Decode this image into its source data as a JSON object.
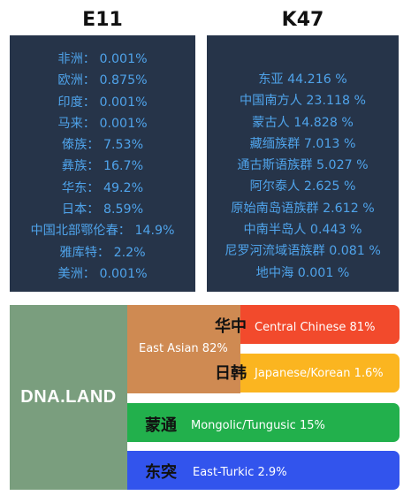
{
  "e11": {
    "title": "E11",
    "items": [
      "非洲： 0.001%",
      "欧洲： 0.875%",
      "印度： 0.001%",
      "马来： 0.001%",
      "傣族： 7.53%",
      "彝族： 16.7%",
      "华东： 49.2%",
      "日本： 8.59%",
      "中国北部鄂伦春： 14.9%",
      "雅库特： 2.2%",
      "美洲： 0.001%"
    ]
  },
  "k47": {
    "title": "K47",
    "items": [
      "东亚 44.216 %",
      "中国南方人 23.118 %",
      "蒙古人 14.828 %",
      "藏缅族群 7.013 %",
      "通古斯语族群 5.027 %",
      "阿尔泰人 2.625 %",
      "原始南岛语族群 2.612 %",
      "中南半岛人 0.443 %",
      "尼罗河流域语族群 0.081 %",
      "地中海 0.001 %"
    ]
  },
  "dna": {
    "label": "DNA.LAND",
    "east_asian": "East Asian 82%",
    "bars": {
      "central": {
        "zh": "华中",
        "en": "Central Chinese 81%",
        "color": "#f24a2c"
      },
      "japkor": {
        "zh": "日韩",
        "en": "Japanese/Korean 1.6%",
        "color": "#fbb520"
      },
      "mongol": {
        "zh": "蒙通",
        "en": "Mongolic/Tungusic 15%",
        "color": "#22b04c"
      },
      "eturk": {
        "zh": "东突",
        "en": "East-Turkic 2.9%",
        "color": "#3254ed"
      }
    },
    "colors": {
      "dna_block": "#7a9e7e",
      "east_asian": "#cf8a52",
      "panel": "#263449",
      "panel_text": "#4fa3ea"
    }
  }
}
